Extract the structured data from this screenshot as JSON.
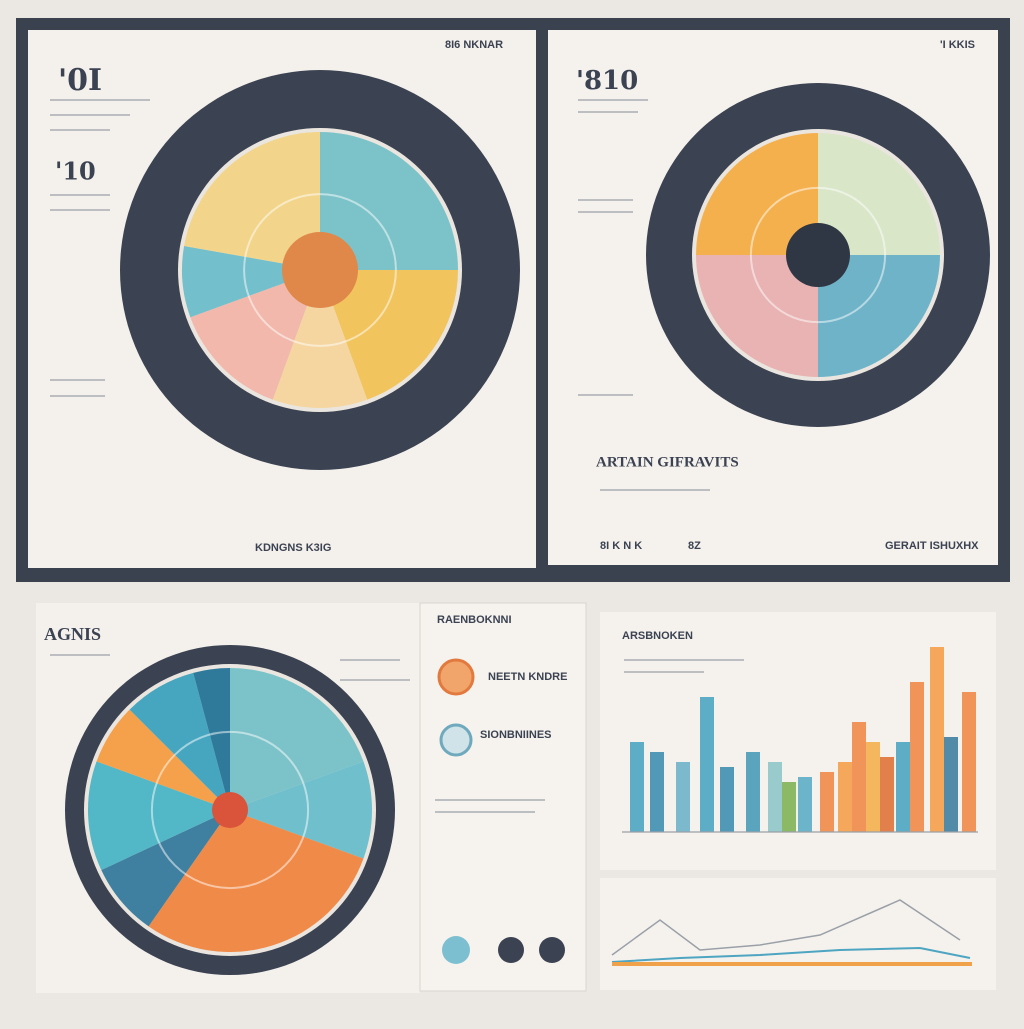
{
  "panels": [
    {
      "header": "8I6 NKNAR",
      "big_number": "'0I",
      "sub_number": "'10",
      "footer": "KDNGNS K3IG"
    },
    {
      "header": "'I KKIS",
      "big_number": "'810",
      "section_title": "ARTAIN GIFRAVITS",
      "footer_left": "8I K N K",
      "footer_mid": "8Z",
      "footer": "GERAIT ISHUXHX"
    },
    {
      "title": "AGNIS"
    },
    {
      "title": "RAENBOKNNI",
      "items": [
        "NEETN KNDRE",
        "SIONBNIINES"
      ]
    },
    {
      "title": "ARSBNOKEN"
    }
  ]
}
